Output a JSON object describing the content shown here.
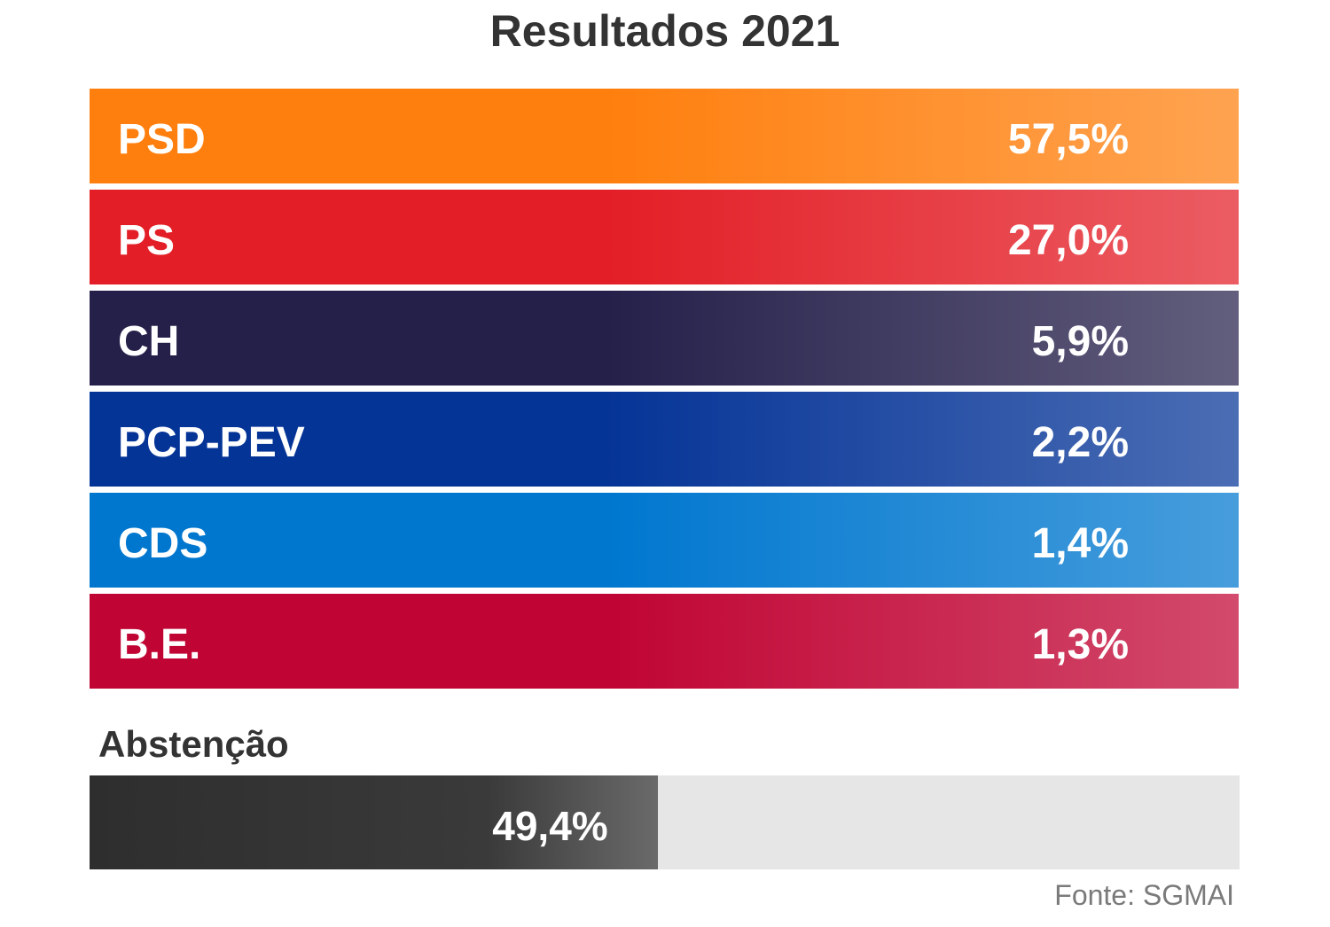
{
  "chart_data": {
    "type": "bar",
    "title": "Resultados 2021",
    "categories": [
      "PSD",
      "PS",
      "CH",
      "PCP-PEV",
      "CDS",
      "B.E."
    ],
    "series": [
      {
        "values": [
          57.5,
          27.0,
          5.9,
          2.2,
          1.4,
          1.3
        ],
        "labels": [
          "57,5%",
          "27,0%",
          "5,9%",
          "2,2%",
          "1,4%",
          "1,3%"
        ]
      }
    ],
    "colors": [
      "#ff7f0e",
      "#e31e26",
      "#25204a",
      "#053497",
      "#0077cf",
      "#c00433"
    ],
    "xlabel": "",
    "ylabel": "",
    "grid": false,
    "legend": "none"
  },
  "abstention": {
    "label": "Abstenção",
    "value": 49.4,
    "value_label": "49,4%",
    "color": "#333333",
    "track_color": "#e6e6e6"
  },
  "source": "Fonte: SGMAI"
}
